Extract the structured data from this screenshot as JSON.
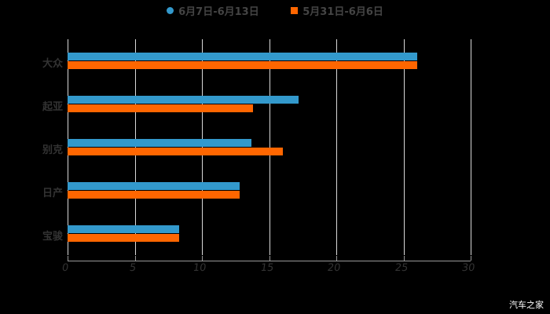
{
  "chart_data": {
    "type": "bar",
    "orientation": "horizontal",
    "title": "",
    "categories": [
      "大众",
      "起亚",
      "别克",
      "日产",
      "宝骏"
    ],
    "series": [
      {
        "name": "6月7日-6月13日",
        "color": "#3399cc",
        "values": [
          26,
          17.2,
          13.7,
          12.8,
          8.3
        ]
      },
      {
        "name": "5月31日-6月6日",
        "color": "#ff6600",
        "values": [
          26,
          13.8,
          16,
          12.8,
          8.3
        ]
      }
    ],
    "xlabel": "",
    "ylabel": "",
    "xlim": [
      0,
      30
    ],
    "xticks": [
      "0",
      "5",
      "10",
      "15",
      "20",
      "25",
      "30"
    ],
    "grid": true,
    "legend_position": "top"
  },
  "legend": [
    {
      "label": "6月7日-6月13日",
      "color": "#3399cc",
      "shape": "circle"
    },
    {
      "label": "5月31日-6月6日",
      "color": "#ff6600",
      "shape": "square"
    }
  ],
  "watermark": "汽车之家"
}
